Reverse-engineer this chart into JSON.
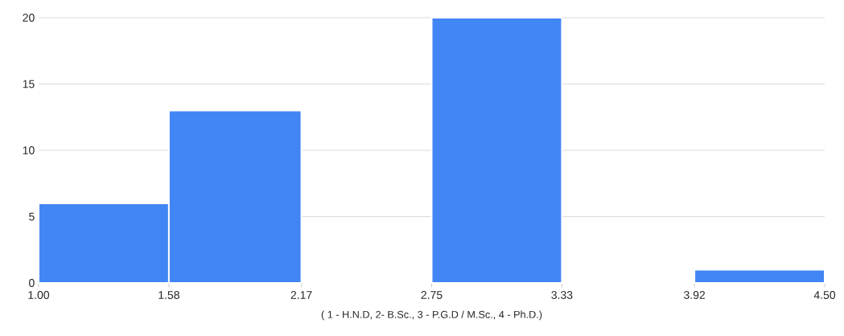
{
  "chart_data": {
    "type": "histogram",
    "bins": [
      1.0,
      1.58,
      2.17,
      2.75,
      3.33,
      3.92,
      4.5
    ],
    "values": [
      6,
      13,
      0,
      20,
      0,
      1
    ],
    "color": "#4285f4",
    "xlabel": "( 1 - H.N.D,  2- B.Sc., 3 - P.G.D / M.Sc., 4 - Ph.D.)",
    "xlim": [
      1.0,
      4.5
    ],
    "xticks": [
      {
        "value": 1.0,
        "label": "1.00"
      },
      {
        "value": 1.58,
        "label": "1.58"
      },
      {
        "value": 2.17,
        "label": "2.17"
      },
      {
        "value": 2.75,
        "label": "2.75"
      },
      {
        "value": 3.33,
        "label": "3.33"
      },
      {
        "value": 3.92,
        "label": "3.92"
      },
      {
        "value": 4.5,
        "label": "4.50"
      }
    ],
    "ylim": [
      0,
      20
    ],
    "yticks": [
      0,
      5,
      10,
      15,
      20
    ],
    "grid": "y"
  }
}
